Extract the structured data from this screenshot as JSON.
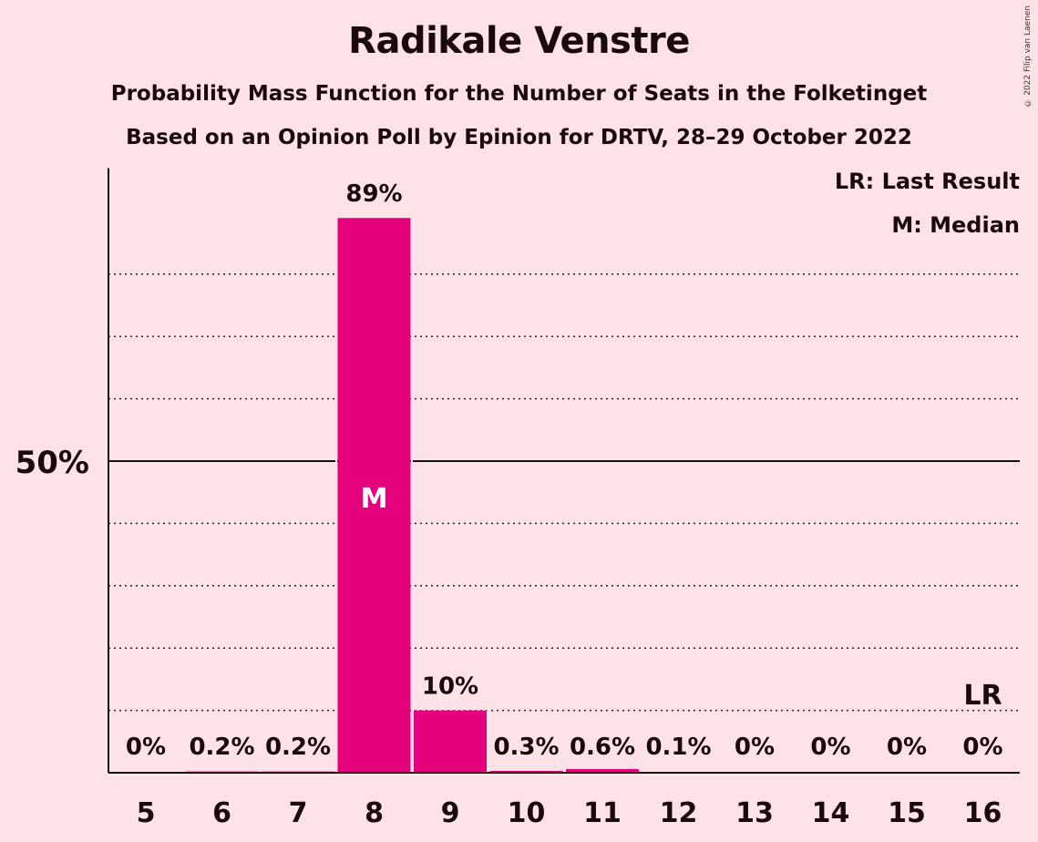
{
  "chart_data": {
    "type": "bar",
    "title": "Radikale Venstre",
    "subtitle_lines": [
      "Probability Mass Function for the Number of Seats in the Folketinget",
      "Based on an Opinion Poll by Epinion for DRTV, 28–29 October 2022"
    ],
    "categories": [
      "5",
      "6",
      "7",
      "8",
      "9",
      "10",
      "11",
      "12",
      "13",
      "14",
      "15",
      "16"
    ],
    "values": [
      0,
      0.2,
      0.2,
      89,
      10,
      0.3,
      0.6,
      0.1,
      0,
      0,
      0,
      0
    ],
    "value_labels": [
      "0%",
      "0.2%",
      "0.2%",
      "89%",
      "10%",
      "0.3%",
      "0.6%",
      "0.1%",
      "0%",
      "0%",
      "0%",
      "0%"
    ],
    "ylim": [
      0,
      97
    ],
    "y_tick_label": "50%",
    "y_tick_value": 50,
    "dotted_gridlines": [
      10,
      20,
      30,
      40,
      60,
      70,
      80
    ],
    "median_category": "8",
    "median_marker": "M",
    "last_result_category": "16",
    "last_result_marker": "LR",
    "legend": [
      "LR: Last Result",
      "M: Median"
    ],
    "legend_position": "top-right",
    "bar_color": "#E5007D"
  },
  "copyright": "© 2022 Filip van Laenen"
}
